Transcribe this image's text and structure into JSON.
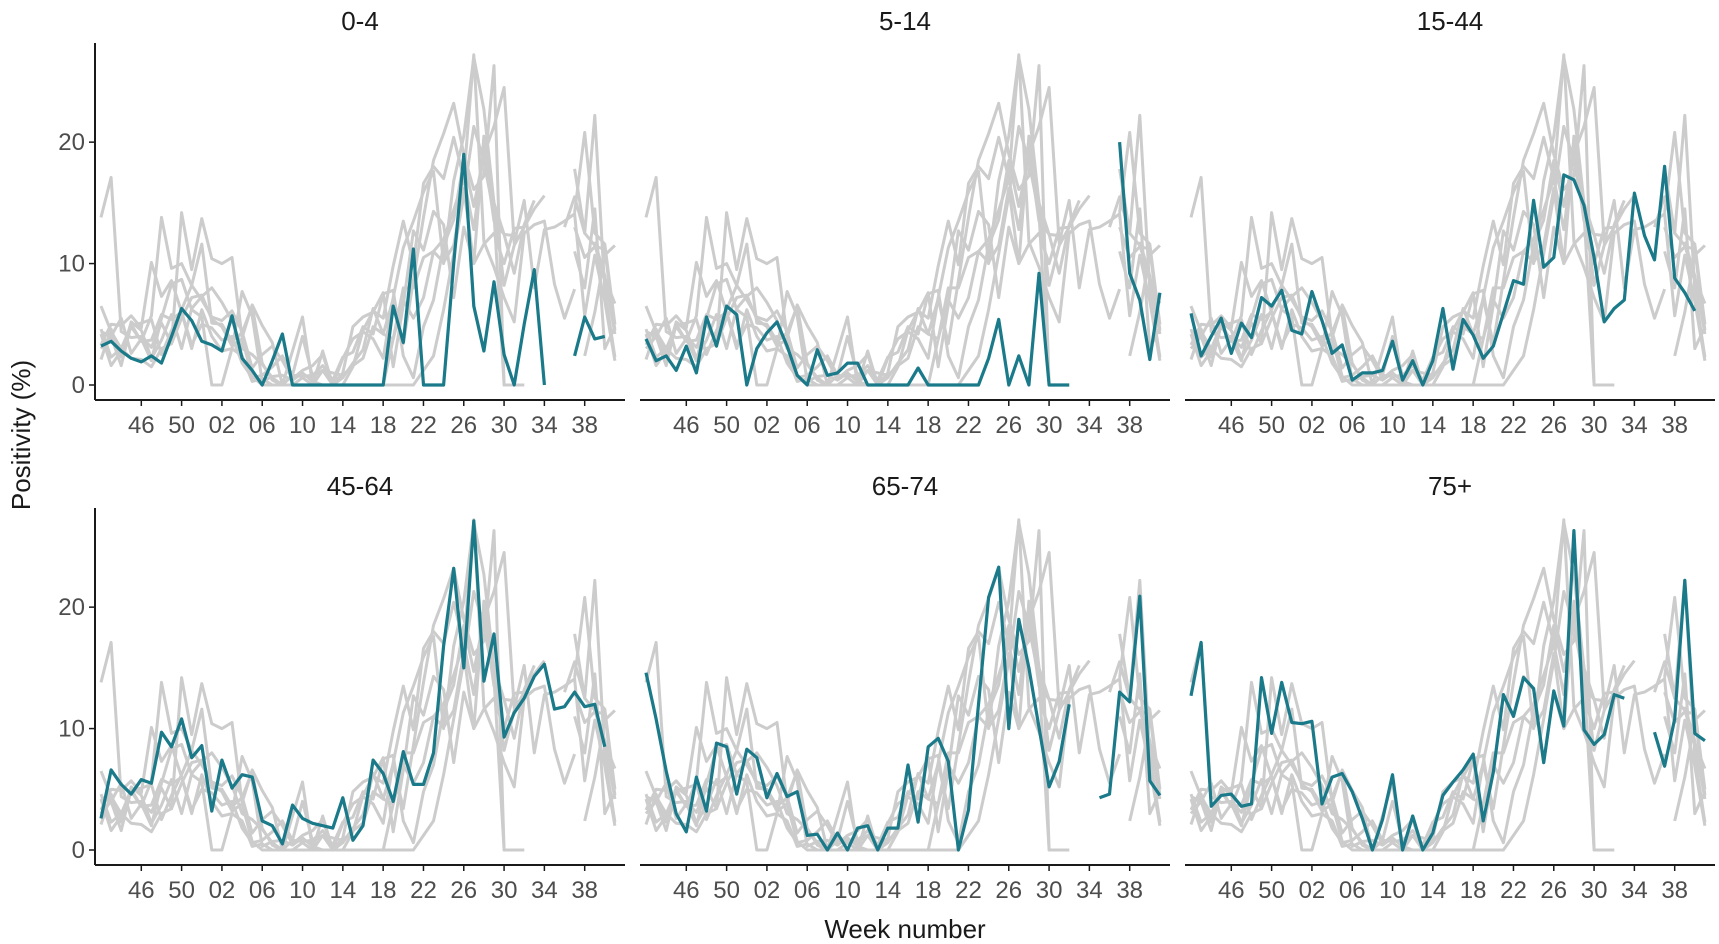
{
  "colors": {
    "current_season": "#1a7a8a",
    "past_seasons": "#cccccc",
    "axis": "#1a1a1a",
    "tick_text": "#4d4d4d"
  },
  "chart_data": {
    "type": "line",
    "xlabel": "Week number",
    "ylabel": "Positivity (%)",
    "ylim": [
      0,
      28
    ],
    "y_ticks": [
      0,
      10,
      20
    ],
    "x_ticks": [
      "46",
      "50",
      "02",
      "06",
      "10",
      "14",
      "18",
      "22",
      "26",
      "30",
      "34",
      "38"
    ],
    "x_tick_index": [
      4,
      8,
      12,
      16,
      20,
      24,
      28,
      32,
      36,
      40,
      44,
      48
    ],
    "x_index_range": [
      0,
      52
    ],
    "panels": [
      {
        "title": "0-4",
        "main": [
          3.2,
          3.6,
          2.8,
          2.2,
          1.9,
          2.4,
          1.8,
          4.0,
          6.3,
          5.3,
          3.6,
          3.3,
          2.8,
          5.7,
          2.2,
          1.2,
          0,
          2.0,
          4.2,
          0,
          0,
          0,
          0,
          0,
          0,
          0,
          0,
          0,
          0,
          6.5,
          3.5,
          11.2,
          0,
          0,
          0,
          10,
          19,
          6.5,
          2.8,
          8.5,
          2.5,
          0,
          5.0,
          9.5,
          0,
          null,
          null,
          2.4,
          5.6,
          3.8,
          4.0
        ]
      },
      {
        "title": "5-14",
        "main": [
          3.8,
          2.0,
          2.4,
          1.2,
          3.2,
          1.0,
          5.6,
          3.2,
          6.5,
          5.8,
          0,
          3.0,
          4.3,
          5.2,
          3.2,
          0.8,
          0,
          2.9,
          0.8,
          1.0,
          1.8,
          1.8,
          0,
          0,
          0,
          0,
          0,
          1.4,
          0,
          0,
          0,
          0,
          0,
          0,
          2.2,
          5.4,
          0,
          2.4,
          0,
          9.2,
          0,
          0,
          0,
          null,
          null,
          null,
          null,
          20,
          9.2,
          7.0,
          2.1,
          7.6
        ]
      },
      {
        "title": "15-44",
        "main": [
          5.9,
          2.4,
          4.0,
          5.5,
          2.6,
          5.1,
          3.9,
          7.2,
          6.5,
          7.8,
          4.5,
          4.2,
          7.7,
          5.3,
          2.6,
          3.3,
          0.4,
          1.0,
          1.0,
          1.2,
          3.6,
          0.4,
          2.0,
          0,
          2.0,
          6.3,
          1.3,
          5.4,
          4.1,
          2.2,
          3.2,
          5.9,
          8.6,
          8.3,
          15.2,
          9.7,
          10.5,
          17.3,
          16.9,
          14.8,
          10.5,
          5.2,
          6.3,
          7.0,
          15.8,
          12.3,
          10.3,
          18.0,
          8.8,
          7.6,
          6.1
        ]
      },
      {
        "title": "45-64",
        "main": [
          2.6,
          6.6,
          5.4,
          4.6,
          5.8,
          5.5,
          9.7,
          8.5,
          10.8,
          7.6,
          8.6,
          3.2,
          7.4,
          5.1,
          6.2,
          6.0,
          2.4,
          2.0,
          0.5,
          3.7,
          2.6,
          2.2,
          2.0,
          1.8,
          4.3,
          0.8,
          2.0,
          7.4,
          6.3,
          4.0,
          8.1,
          5.4,
          5.4,
          8.0,
          16.8,
          23.2,
          15.0,
          27.1,
          13.9,
          17.8,
          9.3,
          11.3,
          12.5,
          14.3,
          15.3,
          11.6,
          11.8,
          13.0,
          11.8,
          12.0,
          8.5
        ]
      },
      {
        "title": "65-74",
        "main": [
          14.6,
          10.8,
          6.5,
          3.0,
          1.5,
          6.0,
          3.2,
          8.8,
          8.5,
          4.6,
          8.3,
          7.6,
          4.3,
          6.3,
          4.4,
          4.8,
          1.2,
          1.3,
          0,
          1.4,
          0,
          1.8,
          2.0,
          0,
          1.8,
          1.8,
          7.0,
          2.3,
          8.5,
          9.2,
          7.3,
          0,
          3.3,
          12.0,
          20.8,
          23.3,
          10.0,
          19.0,
          15.0,
          10.1,
          5.2,
          7.3,
          12.0,
          null,
          null,
          4.3,
          4.6,
          13.0,
          12.2,
          20.9,
          5.7,
          4.5
        ]
      },
      {
        "title": "75+",
        "main": [
          12.7,
          17.1,
          3.6,
          4.5,
          4.6,
          3.6,
          3.8,
          14.2,
          9.6,
          13.8,
          10.5,
          10.4,
          10.6,
          3.8,
          6.0,
          6.3,
          4.8,
          2.6,
          0,
          2.5,
          6.2,
          0,
          2.8,
          0,
          1.4,
          4.5,
          5.6,
          6.6,
          7.9,
          2.4,
          6.4,
          12.8,
          11.0,
          14.2,
          13.3,
          7.2,
          13.1,
          10.2,
          26.3,
          9.9,
          8.7,
          9.5,
          12.8,
          12.5,
          null,
          null,
          9.7,
          6.9,
          10.8,
          22.2,
          9.6,
          9.0
        ]
      }
    ],
    "past_seasons": [
      [
        13.8,
        17.1,
        4.4,
        3.9,
        4.0,
        3.1,
        5.1,
        3.4,
        14.2,
        9.5,
        13.7,
        10.4,
        10.0,
        10.5,
        3.9,
        6.6,
        4.9,
        3.5,
        0,
        2.8,
        5.6,
        0,
        2.8,
        0,
        1.0,
        4.8,
        5.6,
        6.0,
        7.6,
        1.5,
        6.6,
        12.7,
        11.1,
        14.3,
        13.2,
        7.2,
        13.0,
        10.0,
        20.5,
        15.0,
        12.4,
        9.2,
        13.2,
        15.2,
        null,
        null,
        null,
        17.8,
        12.5,
        22.2,
        7.8,
        2.3
      ],
      [
        6.5,
        4.4,
        3.0,
        4.9,
        5.1,
        5.4,
        2.5,
        4.5,
        6.2,
        8.2,
        7.0,
        5.6,
        5.3,
        6.1,
        4.4,
        1.4,
        2.5,
        3.2,
        2.0,
        0.5,
        1.2,
        1.6,
        2.5,
        0,
        0,
        1.5,
        4.5,
        6.1,
        5.5,
        9.8,
        13.5,
        9.9,
        16.6,
        18.0,
        17.0,
        20.4,
        17.0,
        27.2,
        11.8,
        9.7,
        7.2,
        5.2,
        12.5,
        13.2,
        13.5,
        8.3,
        5.5,
        7.9,
        null,
        11.8,
        9.0,
        4.2
      ],
      [
        3.3,
        5.0,
        4.9,
        5.7,
        4.7,
        10.1,
        7.3,
        8.6,
        6.0,
        3.3,
        5.0,
        4.7,
        3.7,
        4.0,
        1.8,
        0.6,
        0.8,
        1.5,
        2.4,
        0.8,
        0.7,
        0.8,
        1.6,
        0.4,
        2.3,
        2.7,
        4.8,
        4.2,
        7.5,
        7.8,
        2.4,
        0.6,
        4.8,
        7.0,
        11.5,
        13.6,
        18.5,
        14.7,
        19.0,
        21.3,
        24.5,
        11.7,
        15.2,
        8.0,
        12.8,
        13.0,
        13.5,
        14.1,
        5.7,
        10.7,
        6.9,
        2.0
      ],
      [
        4.2,
        1.6,
        2.8,
        4.8,
        3.6,
        5.7,
        13.8,
        9.6,
        10.0,
        8.2,
        11.6,
        5.1,
        5.0,
        3.6,
        4.3,
        6.5,
        1.8,
        0.4,
        0,
        0.8,
        4.0,
        0.7,
        1.2,
        0,
        2.2,
        3.8,
        4.4,
        3.8,
        2.2,
        7.2,
        11.3,
        13.5,
        15.9,
        17.6,
        10.0,
        16.8,
        20.5,
        27.0,
        22.7,
        15.0,
        8.2,
        11.5,
        13.0,
        14.5,
        15.6,
        null,
        null,
        13.0,
        10.5,
        11.4,
        11.2,
        4.5
      ],
      [
        3.0,
        4.0,
        5.5,
        2.6,
        3.8,
        2.0,
        5.5,
        8.3,
        8.7,
        6.2,
        5.6,
        0,
        0,
        3.0,
        7.7,
        5.7,
        0.3,
        0.7,
        0.8,
        0.4,
        1.0,
        0.3,
        0,
        0,
        0.6,
        1.8,
        2.9,
        6.3,
        4.2,
        7.1,
        3.4,
        8.6,
        13.8,
        18.5,
        20.7,
        23.2,
        19.0,
        16.1,
        17.2,
        26.3,
        0,
        0,
        0,
        null,
        null,
        null,
        null,
        14.2,
        20.8,
        12.5,
        11.6,
        5.0
      ],
      [
        2.1,
        4.6,
        2.3,
        5.2,
        4.5,
        2.2,
        3.7,
        5.8,
        3.0,
        6.3,
        7.3,
        8.0,
        6.8,
        5.3,
        3.0,
        2.5,
        1.7,
        0.6,
        0,
        0,
        0.6,
        0,
        1.2,
        1.0,
        0.8,
        1.6,
        2.2,
        4.8,
        4.2,
        3.8,
        7.0,
        5.5,
        7.2,
        11.0,
        12.0,
        14.4,
        17.0,
        12.8,
        19.4,
        13.5,
        12.4,
        12.3,
        12.0,
        null,
        null,
        null,
        null,
        11.0,
        8.0,
        14.5,
        3.0,
        4.8
      ],
      [
        4.4,
        4.0,
        1.6,
        5.0,
        3.6,
        3.7,
        5.8,
        5.4,
        6.0,
        3.0,
        6.2,
        4.0,
        2.8,
        3.0,
        2.4,
        0.3,
        0.5,
        0,
        0,
        0,
        0,
        0,
        0,
        0,
        0,
        0,
        0,
        0,
        0,
        3.8,
        8.0,
        8.0,
        10.5,
        11.0,
        10.1,
        11.5,
        16.2,
        10.0,
        11.6,
        12.5,
        10.0,
        12.9,
        13.0,
        null,
        null,
        null,
        13.0,
        15.5,
        12.5,
        11.5,
        8.8,
        6.7
      ],
      [
        4.6,
        2.3,
        3.0,
        2.2,
        2.1,
        1.5,
        3.0,
        3.4,
        5.5,
        7.2,
        7.4,
        5.4,
        4.8,
        3.2,
        3.8,
        0.7,
        0,
        0,
        0,
        0,
        0,
        0,
        0,
        0,
        0,
        0,
        0,
        0,
        0,
        0,
        0,
        0,
        1.2,
        2.4,
        6.2,
        10.8,
        15.6,
        21.3,
        18.4,
        14.1,
        0,
        0,
        0,
        null,
        null,
        null,
        null,
        null,
        2.4,
        6.0,
        10.7,
        11.5
      ]
    ]
  }
}
